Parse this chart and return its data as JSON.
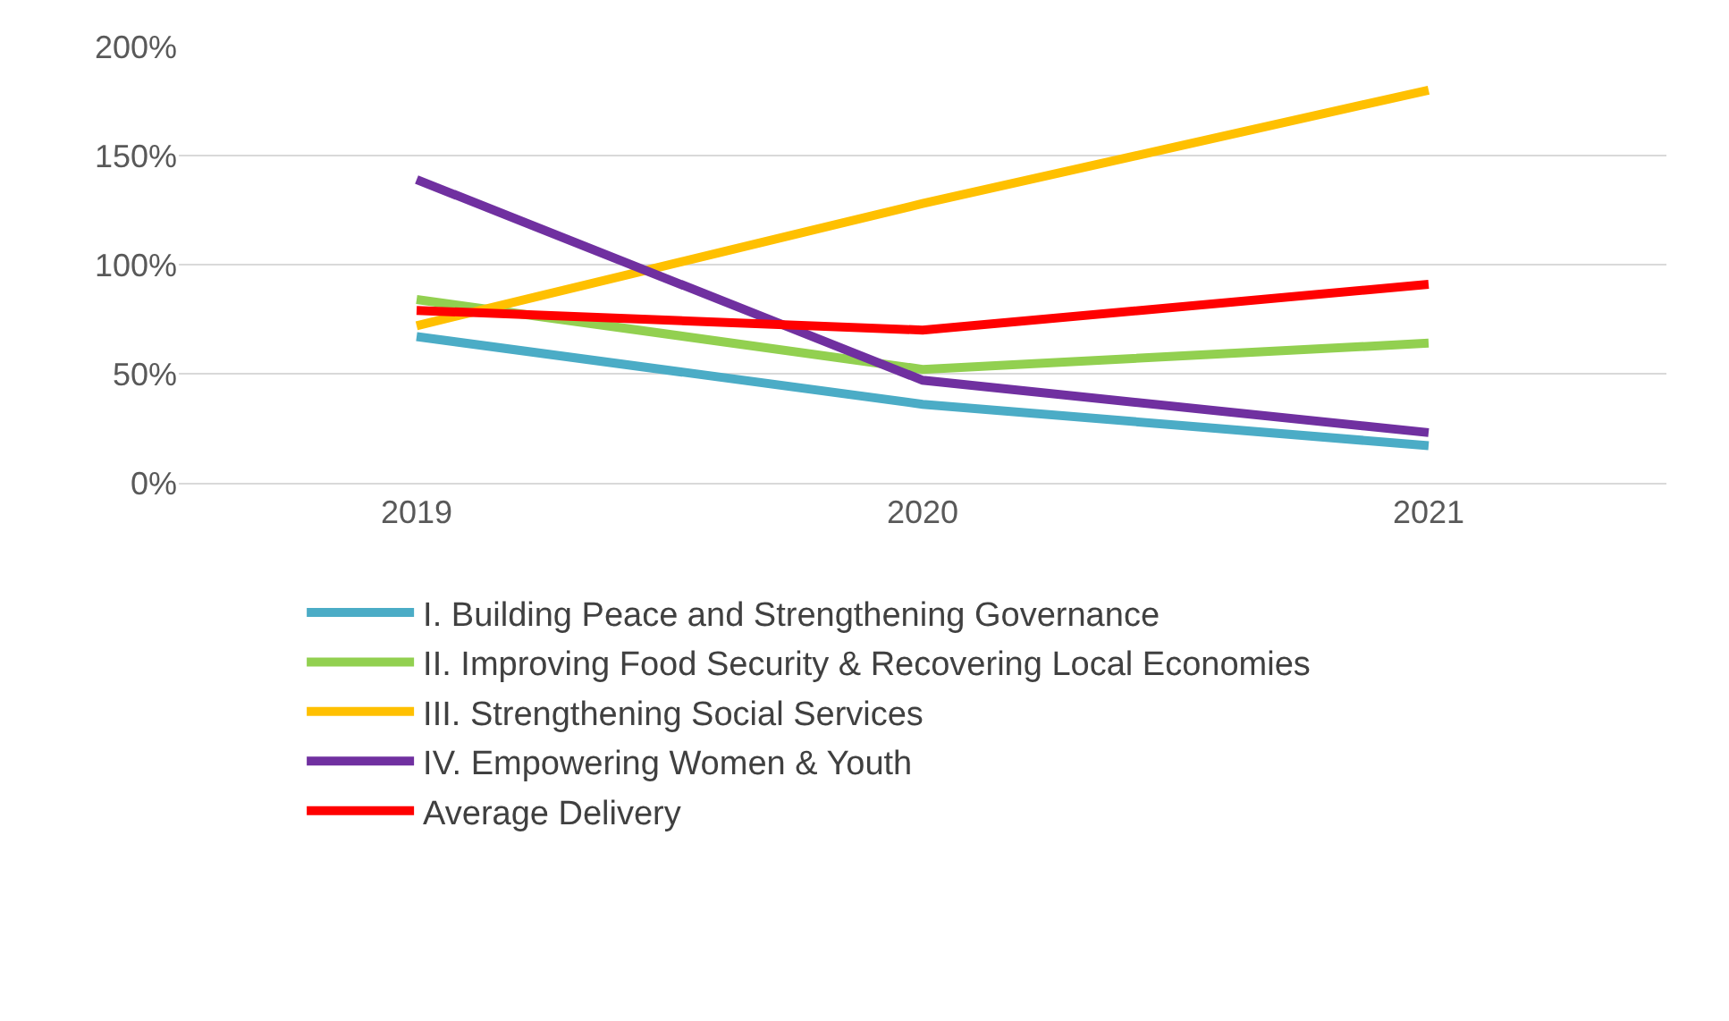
{
  "chart_data": {
    "type": "line",
    "categories": [
      "2019",
      "2020",
      "2021"
    ],
    "series": [
      {
        "name": "I. Building Peace and Strengthening Governance",
        "color": "#4bacc6",
        "values": [
          67,
          36,
          17
        ]
      },
      {
        "name": "II. Improving Food Security & Recovering Local Economies",
        "color": "#92d050",
        "values": [
          84,
          52,
          64
        ]
      },
      {
        "name": "III. Strengthening Social Services",
        "color": "#ffc000",
        "values": [
          72,
          128,
          180
        ]
      },
      {
        "name": "IV. Empowering Women & Youth",
        "color": "#7030a0",
        "values": [
          139,
          47,
          23
        ]
      },
      {
        "name": "Average Delivery",
        "color": "#ff0000",
        "values": [
          79,
          70,
          91
        ]
      }
    ],
    "ylim": [
      0,
      200
    ],
    "yticks": [
      {
        "value": 0,
        "label": "0%"
      },
      {
        "value": 50,
        "label": "50%"
      },
      {
        "value": 100,
        "label": "100%"
      },
      {
        "value": 150,
        "label": "150%"
      },
      {
        "value": 200,
        "label": "200%"
      }
    ],
    "grid": "y",
    "legend": "bottom",
    "marker": "none",
    "line_style": "solid"
  }
}
